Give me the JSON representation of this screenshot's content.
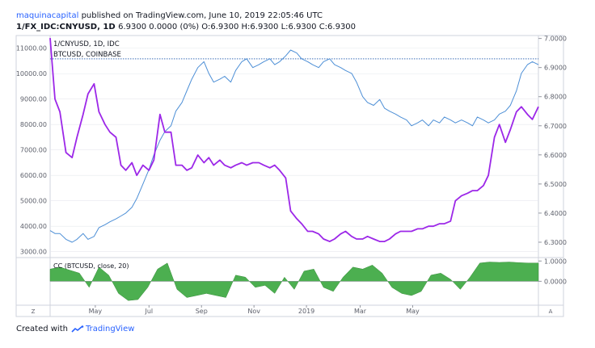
{
  "header": {
    "author": "maquinacapital",
    "published_text": "published on TradingView.com, June 10, 2019 22:05:46 UTC",
    "symbol_line": "1/FX_IDC:CNYUSD, 1D",
    "values_line": "6.9300 0.0000 (0%) O:6.9300 H:6.9300 L:6.9300 C:6.9300"
  },
  "footer": {
    "created_with": "Created with",
    "brand": "TradingView"
  },
  "controls": {
    "zoom_left": "Z",
    "auto_right": "A"
  },
  "colors": {
    "cny_line": "#4d8fd6",
    "btc_line": "#9c27e8",
    "cc_fill": "#4caf50",
    "grid": "#e6e8ee",
    "axis": "#cfd3dc",
    "dotted": "#3c6fb8"
  },
  "chart_data": {
    "type": "line",
    "main_pane": {
      "legend": [
        "1/CNYUSD, 1D, IDC",
        "BTCUSD, COINBASE"
      ],
      "left_axis_ticks": [
        "11000.00",
        "10000.00",
        "9000.00",
        "8000.00",
        "7000.00",
        "6000.00",
        "5000.00",
        "4000.00",
        "3000.00"
      ],
      "left_axis_values": [
        11000,
        10000,
        9000,
        8000,
        7000,
        6000,
        5000,
        4000,
        3000
      ],
      "right_axis_ticks": [
        "7.0000",
        "6.9000",
        "6.8000",
        "6.7000",
        "6.6000",
        "6.5000",
        "6.4000",
        "6.3000"
      ],
      "right_axis_values": [
        7.0,
        6.9,
        6.8,
        6.7,
        6.6,
        6.5,
        6.4,
        6.3
      ],
      "left_range": [
        2800,
        11500
      ],
      "right_range": [
        6.25,
        7.01
      ],
      "reference_value_right": 6.93,
      "x_months": [
        "May",
        "Jul",
        "Sep",
        "Nov",
        "2019",
        "Mar",
        "May"
      ],
      "series": [
        {
          "name": "1/CNYUSD, 1D, IDC",
          "axis": "right",
          "t": [
            0,
            4,
            8,
            13,
            18,
            22,
            27,
            31,
            36,
            40,
            45,
            49,
            54,
            58,
            62,
            67,
            71,
            76,
            81,
            85,
            90,
            94,
            99,
            103,
            108,
            112,
            116,
            121,
            126,
            130,
            134,
            139,
            143,
            148,
            152,
            157,
            161,
            166,
            171,
            175,
            180,
            184,
            188,
            193,
            197,
            202,
            206,
            211,
            215,
            220,
            224,
            229,
            233,
            238,
            242,
            247,
            251,
            256,
            260,
            265,
            270,
            274,
            278,
            283,
            287,
            292,
            296,
            301,
            305,
            310,
            314,
            319,
            323,
            328,
            332,
            337,
            342,
            346,
            350,
            355,
            359,
            364,
            368,
            373,
            377,
            382,
            386,
            391,
            395,
            400
          ],
          "values": [
            6.34,
            6.33,
            6.33,
            6.31,
            6.3,
            6.31,
            6.33,
            6.31,
            6.32,
            6.35,
            6.36,
            6.37,
            6.38,
            6.39,
            6.4,
            6.42,
            6.45,
            6.5,
            6.55,
            6.6,
            6.65,
            6.68,
            6.7,
            6.75,
            6.78,
            6.82,
            6.86,
            6.9,
            6.92,
            6.88,
            6.85,
            6.86,
            6.87,
            6.85,
            6.89,
            6.92,
            6.93,
            6.9,
            6.91,
            6.92,
            6.93,
            6.91,
            6.92,
            6.94,
            6.96,
            6.95,
            6.93,
            6.92,
            6.91,
            6.9,
            6.92,
            6.93,
            6.91,
            6.9,
            6.89,
            6.88,
            6.85,
            6.8,
            6.78,
            6.77,
            6.79,
            6.76,
            6.75,
            6.74,
            6.73,
            6.72,
            6.7,
            6.71,
            6.72,
            6.7,
            6.72,
            6.71,
            6.73,
            6.72,
            6.71,
            6.72,
            6.71,
            6.7,
            6.73,
            6.72,
            6.71,
            6.72,
            6.74,
            6.75,
            6.77,
            6.82,
            6.88,
            6.91,
            6.92,
            6.91
          ]
        },
        {
          "name": "BTCUSD, COINBASE",
          "axis": "left",
          "t": [
            0,
            4,
            8,
            13,
            18,
            22,
            27,
            31,
            36,
            40,
            45,
            49,
            54,
            58,
            62,
            67,
            71,
            76,
            81,
            85,
            90,
            94,
            99,
            103,
            108,
            112,
            116,
            121,
            126,
            130,
            134,
            139,
            143,
            148,
            152,
            157,
            161,
            166,
            171,
            175,
            180,
            184,
            188,
            193,
            197,
            202,
            206,
            211,
            215,
            220,
            224,
            229,
            233,
            238,
            242,
            247,
            251,
            256,
            260,
            265,
            270,
            274,
            278,
            283,
            287,
            292,
            296,
            301,
            305,
            310,
            314,
            319,
            323,
            328,
            332,
            337,
            342,
            346,
            350,
            355,
            359,
            364,
            368,
            373,
            377,
            382,
            386,
            391,
            395,
            400
          ],
          "values": [
            11400,
            9000,
            8500,
            6900,
            6700,
            7500,
            8400,
            9200,
            9600,
            8500,
            8000,
            7700,
            7500,
            6400,
            6200,
            6500,
            6000,
            6400,
            6200,
            6600,
            8400,
            7700,
            7700,
            6400,
            6400,
            6200,
            6300,
            6800,
            6500,
            6700,
            6400,
            6600,
            6400,
            6300,
            6400,
            6500,
            6400,
            6500,
            6500,
            6400,
            6300,
            6400,
            6200,
            5900,
            4600,
            4300,
            4100,
            3800,
            3800,
            3700,
            3500,
            3400,
            3500,
            3700,
            3800,
            3600,
            3500,
            3500,
            3600,
            3500,
            3400,
            3400,
            3500,
            3700,
            3800,
            3800,
            3800,
            3900,
            3900,
            4000,
            4000,
            4100,
            4100,
            4200,
            5000,
            5200,
            5300,
            5400,
            5400,
            5600,
            6000,
            7500,
            8000,
            7300,
            7800,
            8500,
            8700,
            8400,
            8200,
            8700
          ]
        }
      ]
    },
    "cc_pane": {
      "legend": "CC (BTCUSD, close, 20)",
      "right_axis_ticks": [
        "1.0000",
        "0.0000"
      ],
      "right_axis_values": [
        1.0,
        0.0
      ],
      "range": [
        -1.1,
        1.05
      ],
      "series": [
        {
          "name": "CC (BTCUSD, close, 20)",
          "t": [
            0,
            8,
            16,
            24,
            32,
            40,
            48,
            56,
            64,
            72,
            80,
            88,
            96,
            104,
            112,
            120,
            128,
            136,
            144,
            152,
            160,
            168,
            176,
            184,
            192,
            200,
            208,
            216,
            224,
            232,
            240,
            248,
            256,
            264,
            272,
            280,
            288,
            296,
            304,
            312,
            320,
            328,
            336,
            344,
            352,
            360,
            368,
            376,
            384,
            392,
            400
          ],
          "values": [
            0.6,
            0.7,
            0.55,
            0.4,
            -0.3,
            0.7,
            0.3,
            -0.6,
            -0.95,
            -0.9,
            -0.3,
            0.6,
            0.9,
            -0.4,
            -0.8,
            -0.7,
            -0.6,
            -0.7,
            -0.8,
            0.3,
            0.2,
            -0.3,
            -0.2,
            -0.6,
            0.2,
            -0.4,
            0.5,
            0.6,
            -0.3,
            -0.5,
            0.2,
            0.7,
            0.6,
            0.8,
            0.4,
            -0.3,
            -0.6,
            -0.7,
            -0.5,
            0.3,
            0.4,
            0.1,
            -0.4,
            0.2,
            0.9,
            0.95,
            0.93,
            0.95,
            0.92,
            0.9,
            0.9
          ]
        }
      ]
    }
  }
}
